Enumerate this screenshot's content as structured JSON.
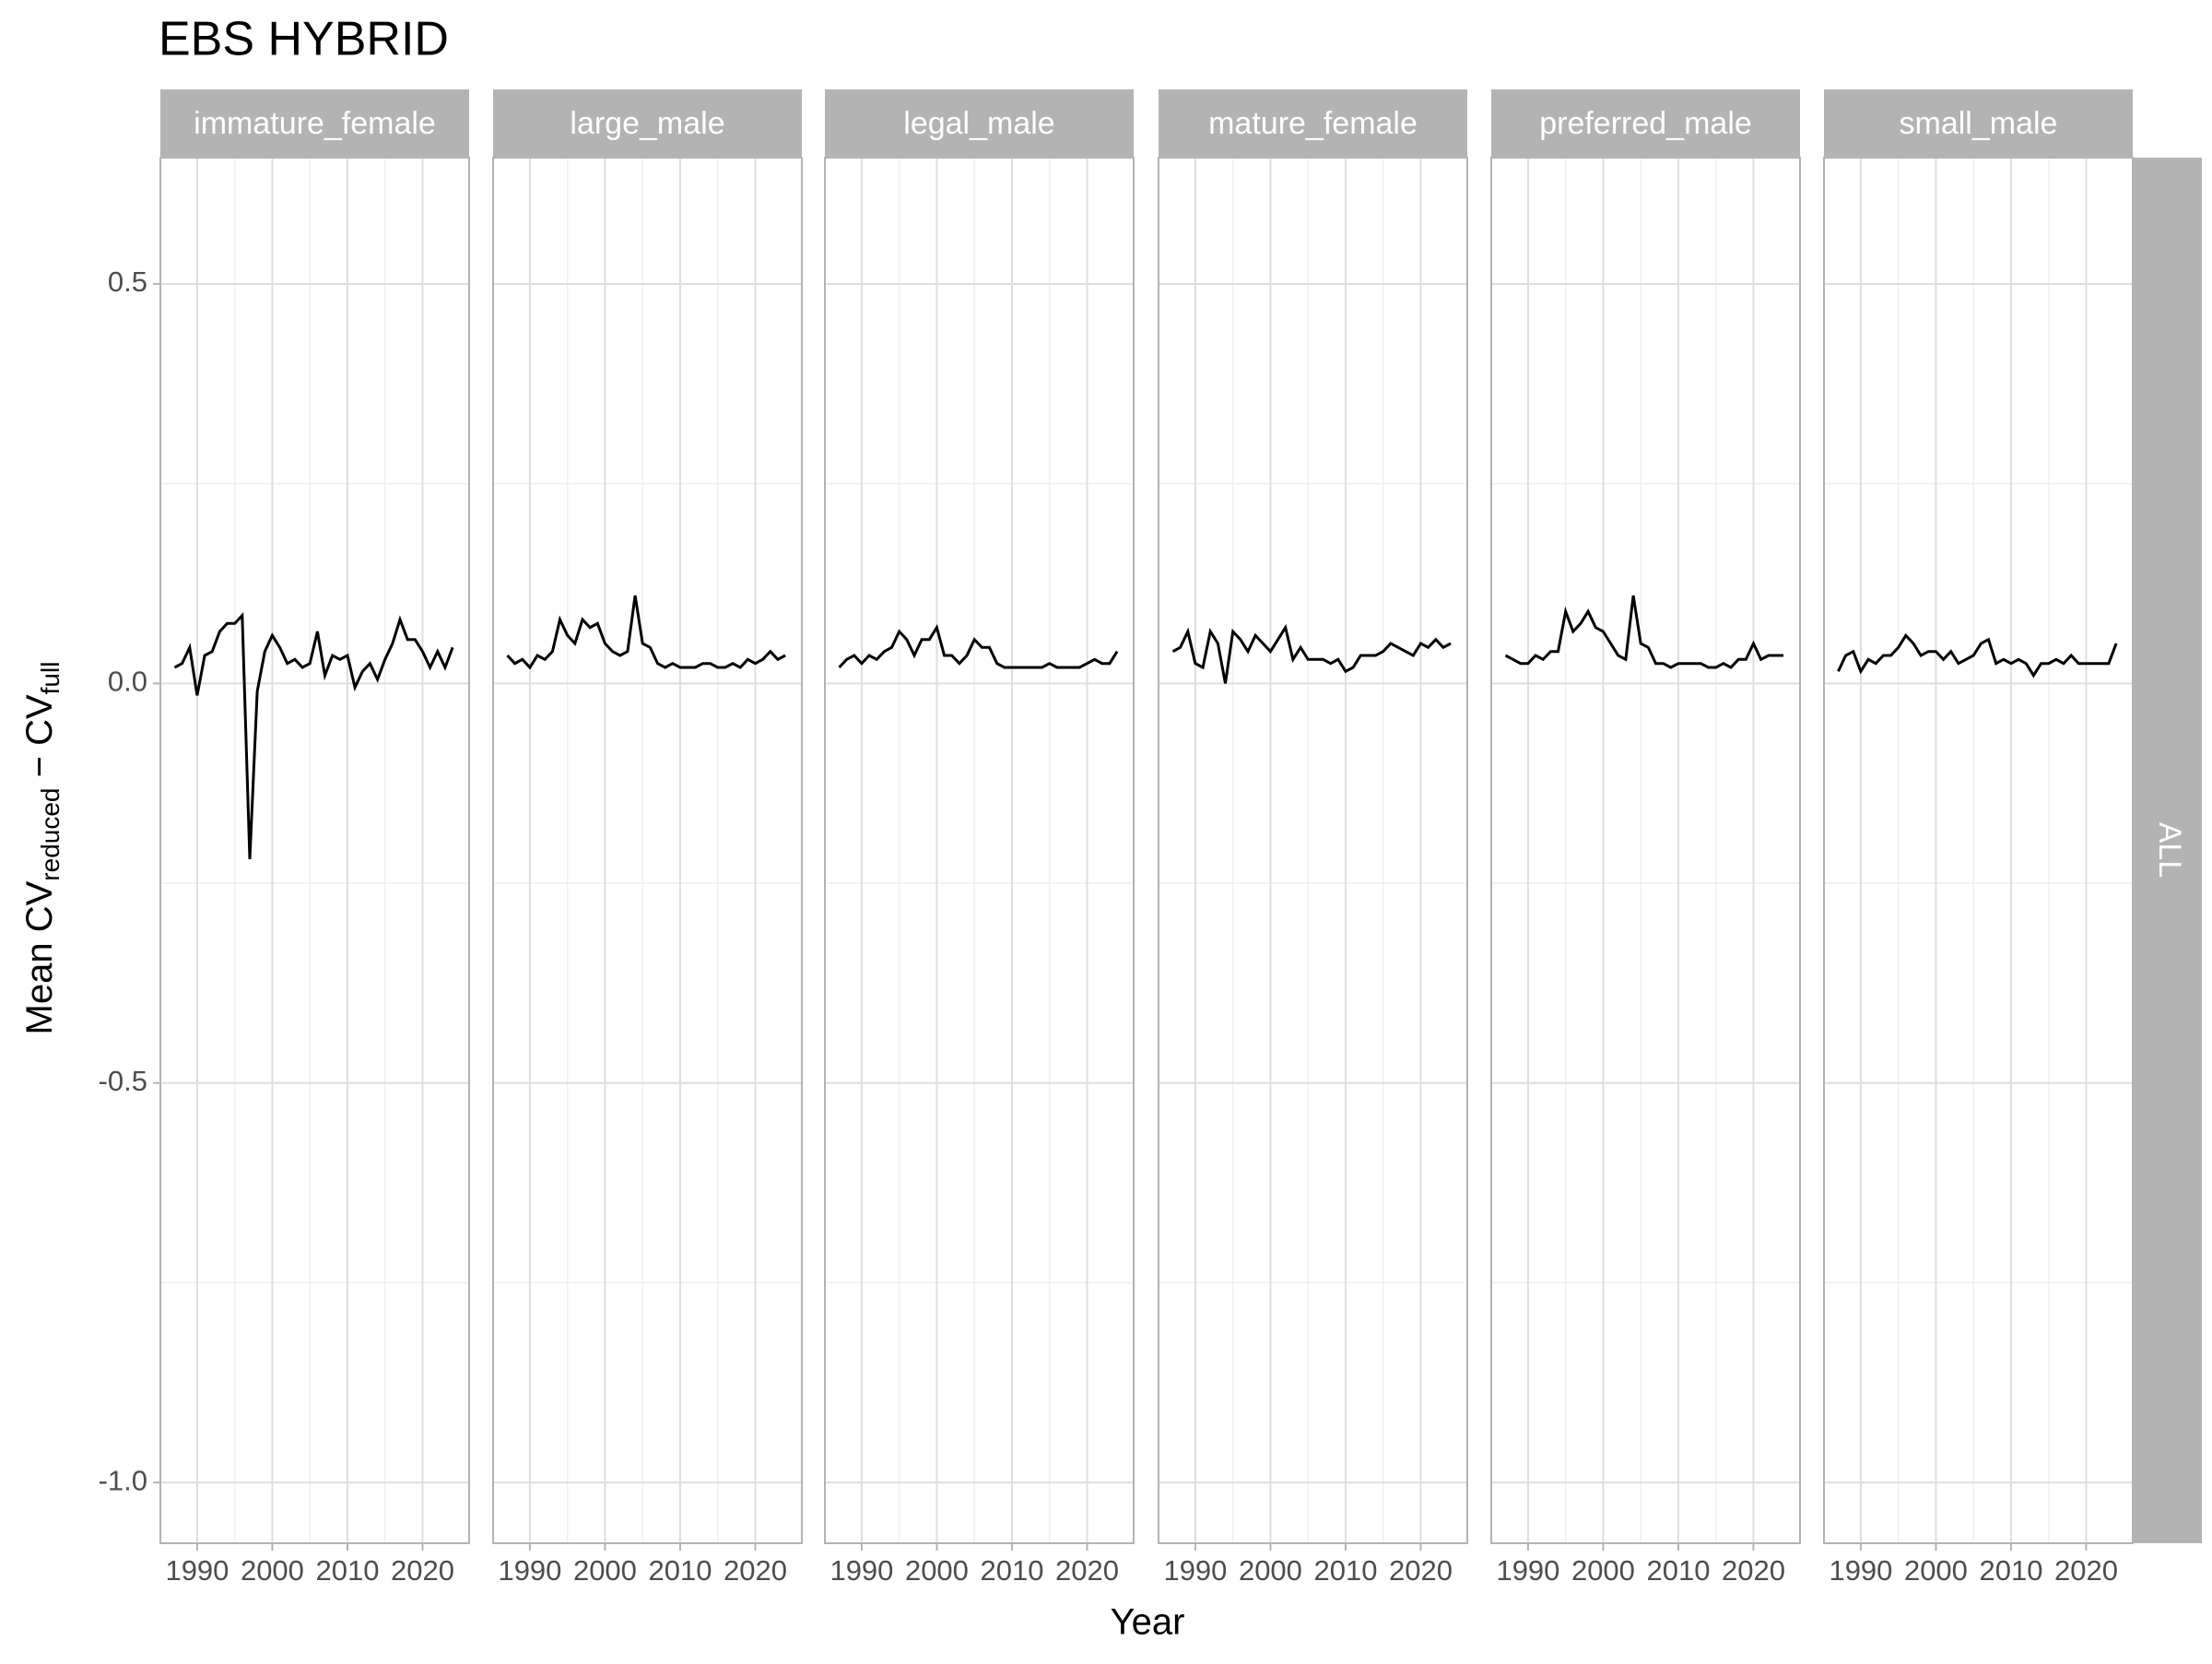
{
  "chart_data": {
    "type": "line",
    "title": "EBS HYBRID",
    "x_label": "Year",
    "y_label": {
      "main": "Mean CV",
      "sub1": "reduced",
      "mid": " − CV",
      "sub2": "full"
    },
    "row_label": "ALL",
    "color": "#000000",
    "grid": true,
    "x": [
      1987,
      1988,
      1989,
      1990,
      1991,
      1992,
      1993,
      1994,
      1995,
      1996,
      1997,
      1998,
      1999,
      2000,
      2001,
      2002,
      2003,
      2004,
      2005,
      2006,
      2007,
      2008,
      2009,
      2010,
      2011,
      2012,
      2013,
      2014,
      2015,
      2016,
      2017,
      2018,
      2019,
      2020,
      2021,
      2022,
      2023,
      2024
    ],
    "xlim": [
      1985.1,
      2026.2
    ],
    "xticks": [
      1990,
      2000,
      2010,
      2020
    ],
    "ylim": [
      -1.076,
      0.658
    ],
    "yticks": [
      {
        "value": -1,
        "label": "-1.0"
      },
      -0.5,
      {
        "value": 0,
        "label": "0.0"
      },
      0.5
    ],
    "y_minor_grid": [
      -0.75,
      -0.25,
      0.25
    ],
    "panels": [
      {
        "name": "immature_female",
        "values": [
          0.02,
          0.025,
          0.045,
          -0.015,
          0.035,
          0.04,
          0.065,
          0.075,
          0.075,
          0.085,
          -0.22,
          -0.01,
          0.04,
          0.06,
          0.045,
          0.025,
          0.03,
          0.02,
          0.025,
          0.065,
          0.01,
          0.035,
          0.03,
          0.035,
          -0.005,
          0.015,
          0.025,
          0.005,
          0.03,
          0.05,
          0.08,
          0.055,
          0.055,
          0.04,
          0.02,
          0.04,
          0.02,
          0.045
        ]
      },
      {
        "name": "large_male",
        "values": [
          0.035,
          0.025,
          0.03,
          0.02,
          0.035,
          0.03,
          0.04,
          0.08,
          0.06,
          0.05,
          0.08,
          0.07,
          0.075,
          0.05,
          0.04,
          0.035,
          0.04,
          0.11,
          0.05,
          0.045,
          0.025,
          0.02,
          0.025,
          0.02,
          0.02,
          0.02,
          0.025,
          0.025,
          0.02,
          0.02,
          0.025,
          0.02,
          0.03,
          0.025,
          0.03,
          0.04,
          0.03,
          0.035
        ]
      },
      {
        "name": "legal_male",
        "values": [
          0.02,
          0.03,
          0.035,
          0.025,
          0.035,
          0.03,
          0.04,
          0.045,
          0.065,
          0.055,
          0.035,
          0.055,
          0.055,
          0.07,
          0.035,
          0.035,
          0.025,
          0.035,
          0.055,
          0.045,
          0.045,
          0.025,
          0.02,
          0.02,
          0.02,
          0.02,
          0.02,
          0.02,
          0.025,
          0.02,
          0.02,
          0.02,
          0.02,
          0.025,
          0.03,
          0.025,
          0.025,
          0.04
        ]
      },
      {
        "name": "mature_female",
        "values": [
          0.04,
          0.045,
          0.065,
          0.025,
          0.02,
          0.065,
          0.05,
          0.0,
          0.065,
          0.055,
          0.04,
          0.06,
          0.05,
          0.04,
          0.055,
          0.07,
          0.03,
          0.045,
          0.03,
          0.03,
          0.03,
          0.025,
          0.03,
          0.015,
          0.02,
          0.035,
          0.035,
          0.035,
          0.04,
          0.05,
          0.045,
          0.04,
          0.035,
          0.05,
          0.045,
          0.055,
          0.045,
          0.05
        ]
      },
      {
        "name": "preferred_male",
        "values": [
          0.035,
          0.03,
          0.025,
          0.025,
          0.035,
          0.03,
          0.04,
          0.04,
          0.09,
          0.065,
          0.075,
          0.09,
          0.07,
          0.065,
          0.05,
          0.035,
          0.03,
          0.11,
          0.05,
          0.045,
          0.025,
          0.025,
          0.02,
          0.025,
          0.025,
          0.025,
          0.025,
          0.02,
          0.02,
          0.025,
          0.02,
          0.03,
          0.03,
          0.05,
          0.03,
          0.035,
          0.035,
          0.035
        ]
      },
      {
        "name": "small_male",
        "values": [
          0.015,
          0.035,
          0.04,
          0.015,
          0.03,
          0.025,
          0.035,
          0.035,
          0.045,
          0.06,
          0.05,
          0.035,
          0.04,
          0.04,
          0.03,
          0.04,
          0.025,
          0.03,
          0.035,
          0.05,
          0.055,
          0.025,
          0.03,
          0.025,
          0.03,
          0.025,
          0.01,
          0.025,
          0.025,
          0.03,
          0.025,
          0.035,
          0.025,
          0.025,
          0.025,
          0.025,
          0.025,
          0.05
        ]
      }
    ]
  }
}
